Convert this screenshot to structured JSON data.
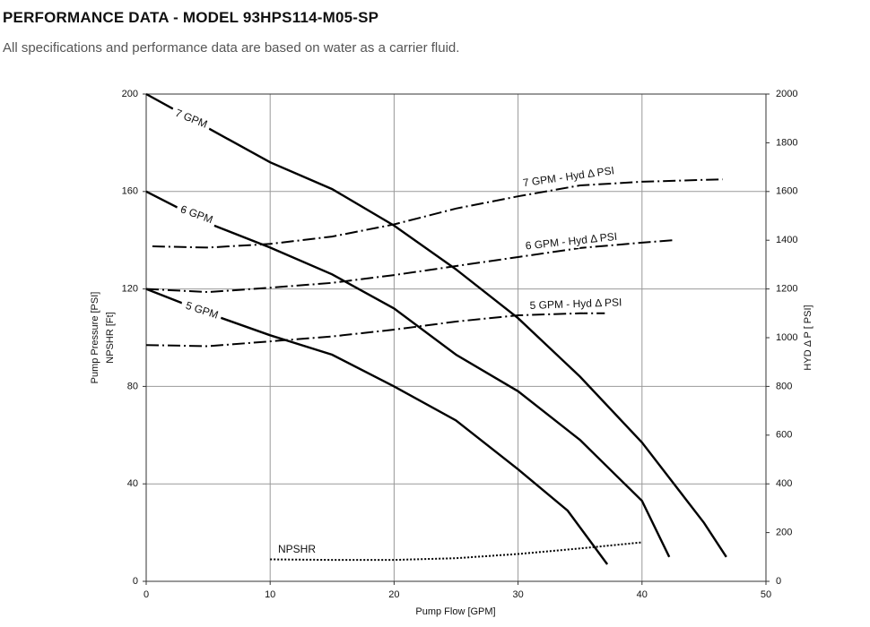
{
  "header": {
    "title": "PERFORMANCE DATA - MODEL 93HPS114-M05-SP",
    "subtitle": "All specifications and performance data are based on water as a carrier fluid."
  },
  "chart_data": {
    "type": "line",
    "x_label": "Pump Flow [GPM]",
    "y_label": [
      "Pump Pressure [PSI]",
      "NPSHR [Ft]"
    ],
    "y2_label": "HYD Δ P [ PSI]",
    "xlim": [
      0,
      50
    ],
    "xticks": [
      0,
      10,
      20,
      30,
      40,
      50
    ],
    "ylim": [
      0,
      200
    ],
    "yticks": [
      0,
      40,
      80,
      120,
      160,
      200
    ],
    "y2lim": [
      0,
      2000
    ],
    "y2ticks": [
      0,
      200,
      400,
      600,
      800,
      1000,
      1200,
      1400,
      1600,
      1800,
      2000
    ],
    "grid": true,
    "series": [
      {
        "name": "7 GPM",
        "color": "#000000",
        "line_style": "solid",
        "x": [
          0,
          5,
          10,
          15,
          20,
          25,
          30,
          35,
          40,
          45,
          46.8
        ],
        "values": [
          200,
          186,
          172,
          161,
          146,
          128,
          108,
          84,
          57,
          24,
          10
        ]
      },
      {
        "name": "6 GPM",
        "color": "#000000",
        "line_style": "solid",
        "x": [
          0,
          5,
          10,
          15,
          20,
          25,
          30,
          35,
          40,
          42.2
        ],
        "values": [
          160,
          147,
          137,
          126,
          112,
          93,
          78,
          58,
          33,
          10
        ]
      },
      {
        "name": "5 GPM",
        "color": "#000000",
        "line_style": "solid",
        "x": [
          0,
          5,
          10,
          15,
          20,
          25,
          30,
          34,
          37.2
        ],
        "values": [
          120,
          110,
          101,
          93,
          80,
          66,
          46,
          29,
          7
        ]
      },
      {
        "name": "7 GPM - Hyd Δ PSI",
        "color": "#000000",
        "line_style": "dashdot",
        "axis": "y2",
        "x": [
          0.5,
          5,
          10,
          15,
          20,
          25,
          30,
          35,
          40,
          46.5
        ],
        "values": [
          1375,
          1370,
          1385,
          1415,
          1465,
          1530,
          1580,
          1625,
          1640,
          1650
        ]
      },
      {
        "name": "6 GPM - Hyd Δ PSI",
        "color": "#000000",
        "line_style": "dashdot",
        "axis": "y2",
        "x": [
          0,
          5,
          10,
          15,
          20,
          25,
          30,
          35,
          40,
          42.5
        ],
        "values": [
          1200,
          1187,
          1205,
          1225,
          1257,
          1294,
          1331,
          1368,
          1390,
          1400
        ]
      },
      {
        "name": "5 GPM - Hyd Δ PSI",
        "color": "#000000",
        "line_style": "dashdot",
        "axis": "y2",
        "x": [
          0,
          5,
          10,
          15,
          20,
          25,
          30,
          35,
          37
        ],
        "values": [
          970,
          965,
          985,
          1005,
          1033,
          1066,
          1092,
          1100,
          1100
        ]
      },
      {
        "name": "NPSHR",
        "color": "#000000",
        "line_style": "dotted",
        "x": [
          10,
          15,
          20,
          25,
          30,
          35,
          40
        ],
        "values": [
          9,
          8.8,
          8.8,
          9.5,
          11.2,
          13.5,
          16
        ]
      }
    ]
  }
}
